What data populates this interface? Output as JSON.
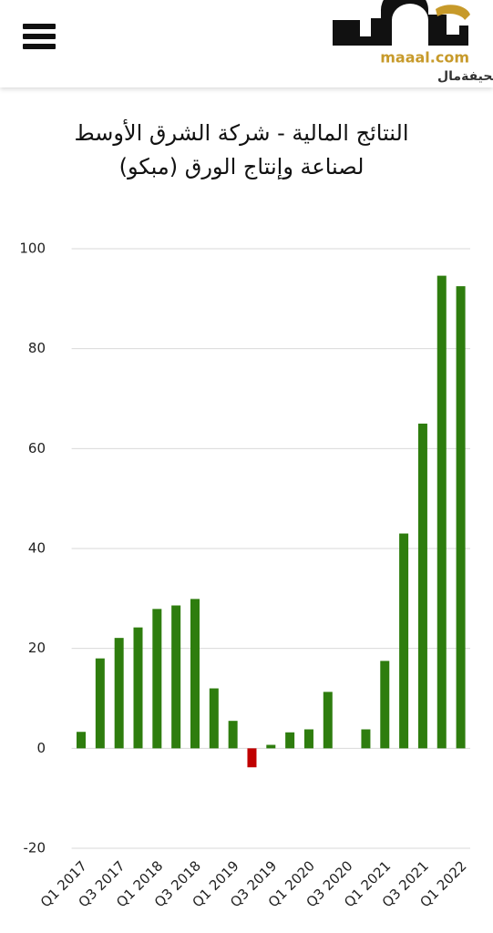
{
  "header": {
    "site": "maaal.com",
    "name": "صحيفةمال"
  },
  "chart_data": {
    "type": "bar",
    "title": "النتائج المالية - شركة الشرق الأوسط لصناعة وإنتاج الورق (مبكو)",
    "categories": [
      "Q1 2017",
      null,
      "Q3 2017",
      null,
      "Q1 2018",
      null,
      "Q3 2018",
      null,
      "Q1 2019",
      null,
      "Q3 2019",
      null,
      "Q1 2020",
      null,
      "Q3 2020",
      null,
      "Q1 2021",
      null,
      "Q3 2021",
      null,
      "Q1 2022"
    ],
    "values": [
      3.3,
      18,
      22.1,
      24.2,
      27.9,
      28.6,
      29.9,
      12,
      5.5,
      -3.8,
      0.7,
      3.2,
      3.8,
      11.3,
      null,
      3.8,
      17.5,
      43,
      65,
      94.6,
      92.5
    ],
    "color": "#2e7d0e",
    "negative_color": "#c00000",
    "ylim": [
      -20,
      100
    ],
    "yticks": [
      -20,
      0,
      20,
      40,
      60,
      80,
      100
    ],
    "grid": true
  }
}
